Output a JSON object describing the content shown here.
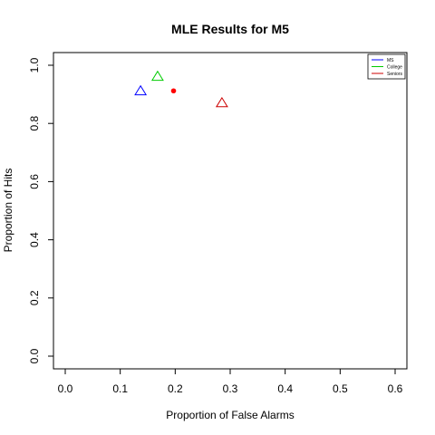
{
  "chart_data": {
    "type": "scatter",
    "title": "MLE Results for M5",
    "xlabel": "Proportion of False Alarms",
    "ylabel": "Proportion of Hits",
    "xlim": [
      0.0,
      0.6
    ],
    "ylim": [
      0.0,
      1.0
    ],
    "x_ticks": [
      "0.0",
      "0.1",
      "0.2",
      "0.3",
      "0.4",
      "0.5",
      "0.6"
    ],
    "y_ticks": [
      "0.0",
      "0.2",
      "0.4",
      "0.6",
      "0.8",
      "1.0"
    ],
    "grid": false,
    "legend_position": "top-right",
    "series": [
      {
        "name": "MS",
        "color": "#0000ff",
        "marker": "triangle-open",
        "points": [
          {
            "x": 0.137,
            "y": 0.912
          }
        ]
      },
      {
        "name": "College",
        "color": "#00cc00",
        "marker": "triangle-open",
        "points": [
          {
            "x": 0.168,
            "y": 0.962
          }
        ]
      },
      {
        "name": "Seniors",
        "color": "#cc0000",
        "marker": "triangle-open",
        "points": [
          {
            "x": 0.285,
            "y": 0.871
          }
        ]
      }
    ],
    "extra_points": [
      {
        "x": 0.197,
        "y": 0.912,
        "color": "#ff0000",
        "marker": "dot"
      }
    ]
  }
}
